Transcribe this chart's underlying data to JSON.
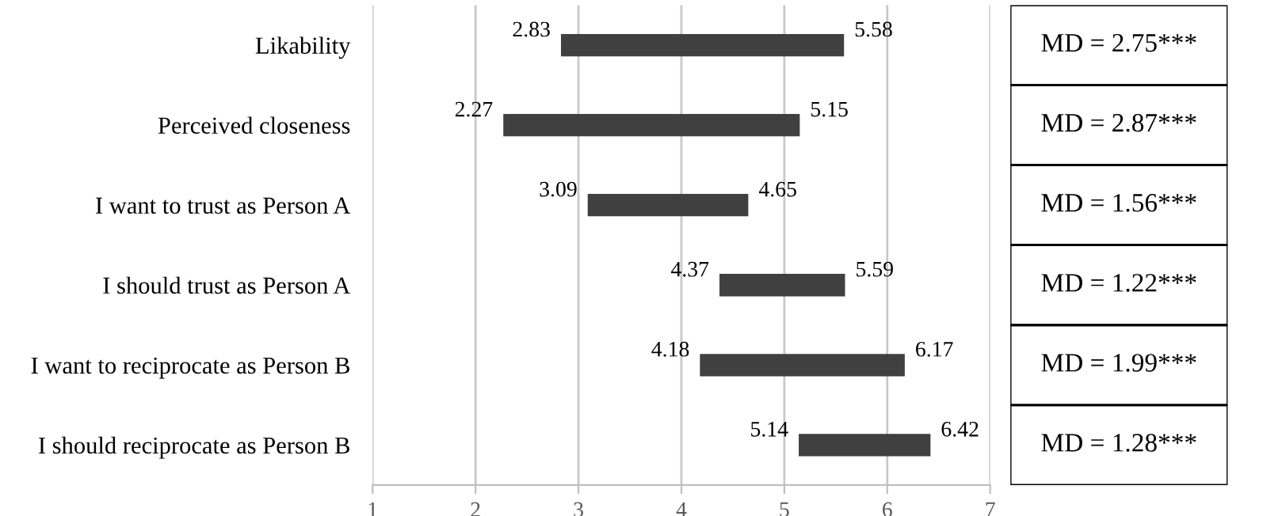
{
  "chart_data": {
    "type": "bar",
    "orientation": "horizontal",
    "categories": [
      "Likability",
      "Perceived closeness",
      "I want to trust as Person A",
      "I should trust as Person A",
      "I want to reciprocate as Person B",
      "I should reciprocate as Person B"
    ],
    "base": [
      2.83,
      2.27,
      3.09,
      4.37,
      4.18,
      5.14
    ],
    "values": [
      2.75,
      2.88,
      1.56,
      1.22,
      1.99,
      1.28
    ],
    "color": "#404040",
    "xlim": [
      1,
      7
    ],
    "xticks": [
      1,
      2,
      3,
      4,
      5,
      6,
      7
    ],
    "grid": "x",
    "legend": false,
    "annotations": [
      {
        "text": "2.83",
        "x": 2.83,
        "y": "Likability"
      },
      {
        "text": "5.58",
        "x": 5.58,
        "y": "Likability"
      },
      {
        "text": "2.27",
        "x": 2.27,
        "y": "Perceived closeness"
      },
      {
        "text": "5.15",
        "x": 5.15,
        "y": "Perceived closeness"
      },
      {
        "text": "3.09",
        "x": 3.09,
        "y": "I want to trust as Person A"
      },
      {
        "text": "4.65",
        "x": 4.65,
        "y": "I want to trust as Person A"
      },
      {
        "text": "4.37",
        "x": 4.37,
        "y": "I should trust as Person A"
      },
      {
        "text": "5.59",
        "x": 5.59,
        "y": "I should trust as Person A"
      },
      {
        "text": "4.18",
        "x": 4.18,
        "y": "I want to reciprocate as Person B"
      },
      {
        "text": "6.17",
        "x": 6.17,
        "y": "I want to reciprocate as Person B"
      },
      {
        "text": "5.14",
        "x": 5.14,
        "y": "I should reciprocate as Person B"
      },
      {
        "text": "6.42",
        "x": 6.42,
        "y": "I should reciprocate as Person B"
      },
      "MD = 2.75***",
      "MD = 2.87***",
      "MD = 1.56***",
      "MD = 1.22***",
      "MD = 1.99***",
      "MD = 1.28***"
    ]
  }
}
